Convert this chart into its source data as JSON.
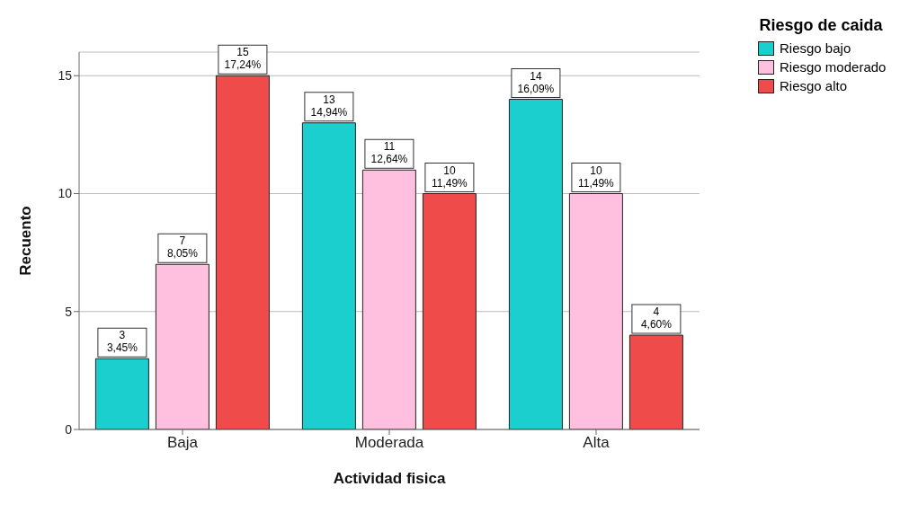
{
  "chart_data": {
    "type": "bar",
    "xlabel": "Actividad fisica",
    "ylabel": "Recuento",
    "legend_title": "Riesgo de caida",
    "categories": [
      "Baja",
      "Moderada",
      "Alta"
    ],
    "series": [
      {
        "name": "Riesgo bajo",
        "color": "#1ccfcf",
        "values": [
          3,
          13,
          14
        ],
        "value_labels": [
          "3\n3,45%",
          "13\n14,94%",
          "14\n16,09%"
        ]
      },
      {
        "name": "Riesgo moderado",
        "color": "#ffc0e0",
        "values": [
          7,
          11,
          10
        ],
        "value_labels": [
          "7\n8,05%",
          "11\n12,64%",
          "10\n11,49%"
        ]
      },
      {
        "name": "Riesgo alto",
        "color": "#ef4b4b",
        "values": [
          15,
          10,
          4
        ],
        "value_labels": [
          "15\n17,24%",
          "10\n11,49%",
          "4\n4,60%"
        ]
      }
    ],
    "ylim": [
      0,
      16
    ],
    "yticks": [
      0,
      5,
      10,
      15
    ],
    "grid": "y",
    "legend": "top right"
  }
}
